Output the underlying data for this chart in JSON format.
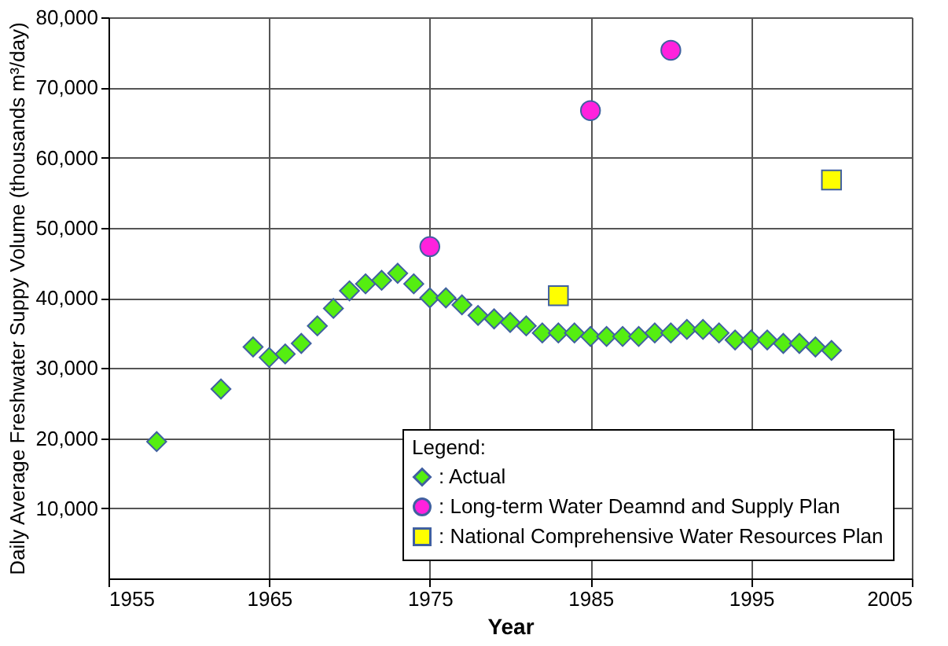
{
  "chart_data": {
    "type": "scatter",
    "xlabel": "Year",
    "ylabel": "Daily Average Freshwater Suppy Volume (thousands m³/day)",
    "legend_title": "Legend:",
    "legend": "bottom right",
    "grid": true,
    "xlim": [
      1955,
      2005
    ],
    "xticks": [
      1955,
      1965,
      1975,
      1985,
      1995,
      2005
    ],
    "ylim": [
      0,
      80000
    ],
    "yticks": [
      {
        "value": 10000,
        "label": "10,000"
      },
      {
        "value": 20000,
        "label": "20,000"
      },
      {
        "value": 30000,
        "label": "30,000"
      },
      {
        "value": 40000,
        "label": "40,000"
      },
      {
        "value": 50000,
        "label": "50,000"
      },
      {
        "value": 60000,
        "label": "60,000"
      },
      {
        "value": 70000,
        "label": "70,000"
      },
      {
        "value": 80000,
        "label": "80,000"
      }
    ],
    "series": [
      {
        "name": ": Actual",
        "color": "#55ee11",
        "marker": "diamond",
        "x": [
          1958,
          1962,
          1964,
          1965,
          1966,
          1967,
          1968,
          1969,
          1970,
          1971,
          1972,
          1973,
          1974,
          1975,
          1976,
          1977,
          1978,
          1979,
          1980,
          1981,
          1982,
          1983,
          1984,
          1985,
          1986,
          1987,
          1988,
          1989,
          1990,
          1991,
          1992,
          1993,
          1994,
          1995,
          1996,
          1997,
          1998,
          1999,
          2000
        ],
        "values": [
          19500,
          27000,
          33000,
          31500,
          32000,
          33500,
          36000,
          38500,
          41000,
          42000,
          42500,
          43500,
          42000,
          40000,
          40000,
          39000,
          37500,
          37000,
          36500,
          36000,
          35000,
          35000,
          35000,
          34500,
          34500,
          34500,
          34500,
          35000,
          35000,
          35500,
          35500,
          35000,
          34000,
          34000,
          34000,
          33500,
          33500,
          33000,
          32500
        ]
      },
      {
        "name": ": Long-term Water Deamnd and Supply Plan",
        "color": "#ff22dd",
        "marker": "circle",
        "x": [
          1975,
          1985,
          1990
        ],
        "values": [
          47300,
          66700,
          75300
        ]
      },
      {
        "name": ": National Comprehensive Water Resources Plan",
        "color": "#ffff00",
        "marker": "square",
        "x": [
          1983,
          2000
        ],
        "values": [
          40300,
          56800
        ]
      }
    ]
  }
}
